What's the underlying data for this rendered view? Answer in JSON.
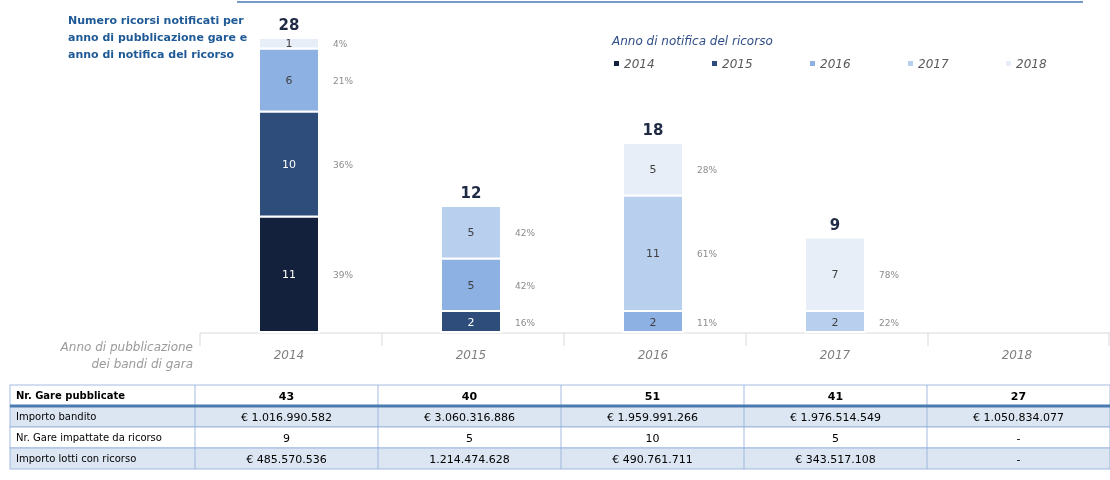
{
  "chart_data": [
    {
      "type": "bar",
      "stacked": true,
      "title": "Numero ricorsi notificati per anno di pubblicazione gare e anno di notifica del ricorso",
      "xlabel": "Anno di pubblicazione dei bandi di gara",
      "legend_title": "Anno di notifica del ricorso",
      "legend": "top right",
      "data_labels": true,
      "categories": [
        "2014",
        "2015",
        "2016",
        "2017",
        "2018"
      ],
      "series": [
        {
          "name": "2014",
          "color": "#14213d",
          "values": [
            11,
            null,
            null,
            null,
            null
          ]
        },
        {
          "name": "2015",
          "color": "#2e4d7b",
          "values": [
            10,
            2,
            null,
            null,
            null
          ]
        },
        {
          "name": "2016",
          "color": "#8db1e2",
          "values": [
            6,
            5,
            2,
            null,
            null
          ]
        },
        {
          "name": "2017",
          "color": "#b8cfed",
          "values": [
            null,
            5,
            11,
            2,
            null
          ]
        },
        {
          "name": "2018",
          "color": "#e8eef8",
          "values": [
            1,
            null,
            5,
            7,
            null
          ]
        }
      ],
      "totals": [
        "28",
        "12",
        "18",
        "9",
        null
      ],
      "annotations": [
        "39%",
        "36%",
        "21%",
        "4%",
        "16%",
        "42%",
        "42%",
        "11%",
        "61%",
        "28%",
        "22%",
        "78%"
      ]
    },
    {
      "type": "other",
      "y_categories": [
        "Nr. Gare pubblicate",
        "Importo bandito",
        "Nr. Gare impattate da ricorso",
        "Importo lotti con ricorso"
      ],
      "cell_labels": [
        [
          "43",
          "40",
          "51",
          "41",
          "27"
        ],
        [
          "€ 1.016.990.582",
          "€ 3.060.316.886",
          "€ 1.959.991.266",
          "€ 1.976.514.549",
          "€ 1.050.834.077"
        ],
        [
          "9",
          "5",
          "10",
          "5",
          "-"
        ],
        [
          "€ 485.570.536",
          "1.214.474.628",
          "€ 490.761.711",
          "€ 343.517.108",
          "-"
        ]
      ]
    }
  ]
}
